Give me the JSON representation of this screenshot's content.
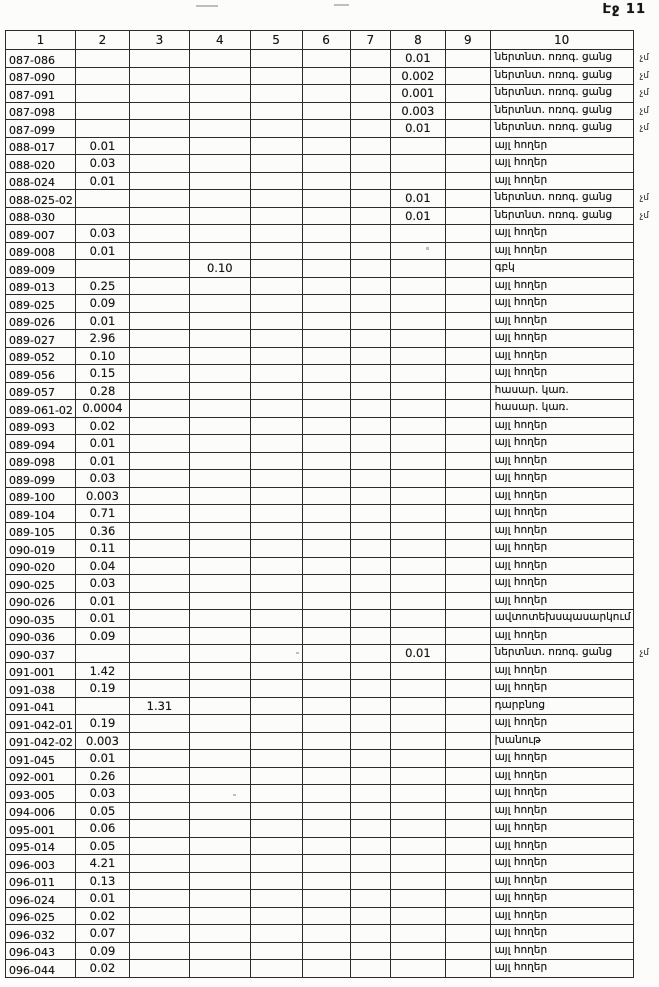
{
  "page": {
    "label": "Էջ 11"
  },
  "table": {
    "headers": [
      "1",
      "2",
      "3",
      "4",
      "5",
      "6",
      "7",
      "8",
      "9",
      "10"
    ],
    "rows": [
      [
        "087-086",
        "",
        "",
        "",
        "",
        "",
        "",
        "0.01",
        "",
        "ներտնտ. ոռոգ. ցանց",
        "չմ"
      ],
      [
        "087-090",
        "",
        "",
        "",
        "",
        "",
        "",
        "0.002",
        "",
        "ներտնտ. ոռոգ. ցանց",
        "չմ"
      ],
      [
        "087-091",
        "",
        "",
        "",
        "",
        "",
        "",
        "0.001",
        "",
        "ներտնտ. ոռոգ. ցանց",
        "չմ"
      ],
      [
        "087-098",
        "",
        "",
        "",
        "",
        "",
        "",
        "0.003",
        "",
        "ներտնտ. ոռոգ. ցանց",
        "չմ"
      ],
      [
        "087-099",
        "",
        "",
        "",
        "",
        "",
        "",
        "0.01",
        "",
        "ներտնտ. ոռոգ. ցանց",
        "չմ"
      ],
      [
        "088-017",
        "0.01",
        "",
        "",
        "",
        "",
        "",
        "",
        "",
        "այլ հողեր",
        ""
      ],
      [
        "088-020",
        "0.03",
        "",
        "",
        "",
        "",
        "",
        "",
        "",
        "այլ հողեր",
        ""
      ],
      [
        "088-024",
        "0.01",
        "",
        "",
        "",
        "",
        "",
        "",
        "",
        "այլ հողեր",
        ""
      ],
      [
        "088-025-02",
        "",
        "",
        "",
        "",
        "",
        "",
        "0.01",
        "",
        "ներտնտ. ոռոգ. ցանց",
        "չմ"
      ],
      [
        "088-030",
        "",
        "",
        "",
        "",
        "",
        "",
        "0.01",
        "",
        "ներտնտ. ոռոգ. ցանց",
        "չմ"
      ],
      [
        "089-007",
        "0.03",
        "",
        "",
        "",
        "",
        "",
        "",
        "",
        "այլ հողեր",
        ""
      ],
      [
        "089-008",
        "0.01",
        "",
        "",
        "",
        "",
        "",
        "",
        "",
        "այլ հողեր",
        ""
      ],
      [
        "089-009",
        "",
        "",
        "0.10",
        "",
        "",
        "",
        "",
        "",
        "գբկ",
        ""
      ],
      [
        "089-013",
        "0.25",
        "",
        "",
        "",
        "",
        "",
        "",
        "",
        "այլ հողեր",
        ""
      ],
      [
        "089-025",
        "0.09",
        "",
        "",
        "",
        "",
        "",
        "",
        "",
        "այլ հողեր",
        ""
      ],
      [
        "089-026",
        "0.01",
        "",
        "",
        "",
        "",
        "",
        "",
        "",
        "այլ հողեր",
        ""
      ],
      [
        "089-027",
        "2.96",
        "",
        "",
        "",
        "",
        "",
        "",
        "",
        "այլ հողեր",
        ""
      ],
      [
        "089-052",
        "0.10",
        "",
        "",
        "",
        "",
        "",
        "",
        "",
        "այլ հողեր",
        ""
      ],
      [
        "089-056",
        "0.15",
        "",
        "",
        "",
        "",
        "",
        "",
        "",
        "այլ հողեր",
        ""
      ],
      [
        "089-057",
        "0.28",
        "",
        "",
        "",
        "",
        "",
        "",
        "",
        "հասար. կառ.",
        ""
      ],
      [
        "089-061-02",
        "0.0004",
        "",
        "",
        "",
        "",
        "",
        "",
        "",
        "հասար. կառ.",
        ""
      ],
      [
        "089-093",
        "0.02",
        "",
        "",
        "",
        "",
        "",
        "",
        "",
        "այլ հողեր",
        ""
      ],
      [
        "089-094",
        "0.01",
        "",
        "",
        "",
        "",
        "",
        "",
        "",
        "այլ հողեր",
        ""
      ],
      [
        "089-098",
        "0.01",
        "",
        "",
        "",
        "",
        "",
        "",
        "",
        "այլ հողեր",
        ""
      ],
      [
        "089-099",
        "0.03",
        "",
        "",
        "",
        "",
        "",
        "",
        "",
        "այլ հողեր",
        ""
      ],
      [
        "089-100",
        "0.003",
        "",
        "",
        "",
        "",
        "",
        "",
        "",
        "այլ հողեր",
        ""
      ],
      [
        "089-104",
        "0.71",
        "",
        "",
        "",
        "",
        "",
        "",
        "",
        "այլ հողեր",
        ""
      ],
      [
        "089-105",
        "0.36",
        "",
        "",
        "",
        "",
        "",
        "",
        "",
        "այլ հողեր",
        ""
      ],
      [
        "090-019",
        "0.11",
        "",
        "",
        "",
        "",
        "",
        "",
        "",
        "այլ հողեր",
        ""
      ],
      [
        "090-020",
        "0.04",
        "",
        "",
        "",
        "",
        "",
        "",
        "",
        "այլ հողեր",
        ""
      ],
      [
        "090-025",
        "0.03",
        "",
        "",
        "",
        "",
        "",
        "",
        "",
        "այլ հողեր",
        ""
      ],
      [
        "090-026",
        "0.01",
        "",
        "",
        "",
        "",
        "",
        "",
        "",
        "այլ հողեր",
        ""
      ],
      [
        "090-035",
        "0.01",
        "",
        "",
        "",
        "",
        "",
        "",
        "",
        "ավտոտեխսպասարկում",
        ""
      ],
      [
        "090-036",
        "0.09",
        "",
        "",
        "",
        "",
        "",
        "",
        "",
        "այլ հողեր",
        ""
      ],
      [
        "090-037",
        "",
        "",
        "",
        "",
        "",
        "",
        "0.01",
        "",
        "ներտնտ. ոռոգ. ցանց",
        "չմ"
      ],
      [
        "091-001",
        "1.42",
        "",
        "",
        "",
        "",
        "",
        "",
        "",
        "այլ հողեր",
        ""
      ],
      [
        "091-038",
        "0.19",
        "",
        "",
        "",
        "",
        "",
        "",
        "",
        "այլ հողեր",
        ""
      ],
      [
        "091-041",
        "",
        "1.31",
        "",
        "",
        "",
        "",
        "",
        "",
        "դարբնոց",
        ""
      ],
      [
        "091-042-01",
        "0.19",
        "",
        "",
        "",
        "",
        "",
        "",
        "",
        "այլ հողեր",
        ""
      ],
      [
        "091-042-02",
        "0.003",
        "",
        "",
        "",
        "",
        "",
        "",
        "",
        "խանութ",
        ""
      ],
      [
        "091-045",
        "0.01",
        "",
        "",
        "",
        "",
        "",
        "",
        "",
        "այլ հողեր",
        ""
      ],
      [
        "092-001",
        "0.26",
        "",
        "",
        "",
        "",
        "",
        "",
        "",
        "այլ հողեր",
        ""
      ],
      [
        "093-005",
        "0.03",
        "",
        "",
        "",
        "",
        "",
        "",
        "",
        "այլ հողեր",
        ""
      ],
      [
        "094-006",
        "0.05",
        "",
        "",
        "",
        "",
        "",
        "",
        "",
        "այլ հողեր",
        ""
      ],
      [
        "095-001",
        "0.06",
        "",
        "",
        "",
        "",
        "",
        "",
        "",
        "այլ հողեր",
        ""
      ],
      [
        "095-014",
        "0.05",
        "",
        "",
        "",
        "",
        "",
        "",
        "",
        "այլ հողեր",
        ""
      ],
      [
        "096-003",
        "4.21",
        "",
        "",
        "",
        "",
        "",
        "",
        "",
        "այլ հողեր",
        ""
      ],
      [
        "096-011",
        "0.13",
        "",
        "",
        "",
        "",
        "",
        "",
        "",
        "այլ հողեր",
        ""
      ],
      [
        "096-024",
        "0.01",
        "",
        "",
        "",
        "",
        "",
        "",
        "",
        "այլ հողեր",
        ""
      ],
      [
        "096-025",
        "0.02",
        "",
        "",
        "",
        "",
        "",
        "",
        "",
        "այլ հողեր",
        ""
      ],
      [
        "096-032",
        "0.07",
        "",
        "",
        "",
        "",
        "",
        "",
        "",
        "այլ հողեր",
        ""
      ],
      [
        "096-043",
        "0.09",
        "",
        "",
        "",
        "",
        "",
        "",
        "",
        "այլ հողեր",
        ""
      ],
      [
        "096-044",
        "0.02",
        "",
        "",
        "",
        "",
        "",
        "",
        "",
        "այլ հողեր",
        ""
      ]
    ]
  }
}
